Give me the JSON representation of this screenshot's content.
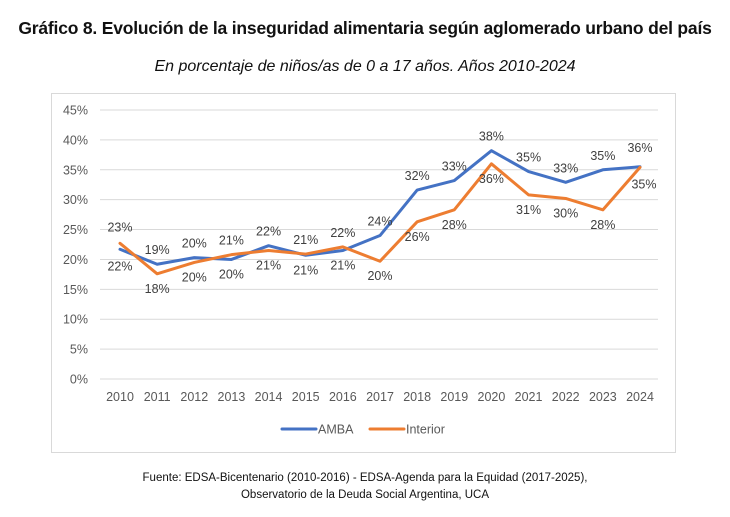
{
  "chart_data": {
    "type": "line",
    "title": "Gráfico 8. Evolución de la inseguridad alimentaria según aglomerado urbano del país",
    "subtitle": "En porcentaje de niños/as de 0 a 17 años. Años 2010-2024",
    "xlabel": "",
    "ylabel": "",
    "categories": [
      "2010",
      "2011",
      "2012",
      "2013",
      "2014",
      "2015",
      "2016",
      "2017",
      "2018",
      "2019",
      "2020",
      "2021",
      "2022",
      "2023",
      "2024"
    ],
    "ylim": [
      0,
      45
    ],
    "yticks": [
      0,
      5,
      10,
      15,
      20,
      25,
      30,
      35,
      40,
      45
    ],
    "ytick_labels": [
      "0%",
      "5%",
      "10%",
      "15%",
      "20%",
      "25%",
      "30%",
      "35%",
      "40%",
      "45%"
    ],
    "grid": true,
    "legend_position": "bottom",
    "series": [
      {
        "name": "AMBA",
        "color": "#4472C4",
        "values": [
          21.7,
          19.2,
          20.3,
          20.0,
          22.3,
          20.7,
          21.5,
          24.0,
          31.6,
          33.2,
          38.2,
          34.7,
          32.9,
          35.0,
          35.5
        ],
        "labels": [
          "22%",
          "19%",
          "20%",
          "20%",
          "22%",
          "21%",
          "21%",
          "24%",
          "32%",
          "33%",
          "38%",
          "35%",
          "33%",
          "35%",
          "36%"
        ]
      },
      {
        "name": "Interior",
        "color": "#ED7D31",
        "values": [
          22.7,
          17.6,
          19.5,
          20.8,
          21.5,
          20.9,
          22.1,
          19.7,
          26.3,
          28.3,
          36.0,
          30.8,
          30.2,
          28.3,
          35.4
        ],
        "labels": [
          "23%",
          "18%",
          "20%",
          "21%",
          "21%",
          "21%",
          "22%",
          "20%",
          "26%",
          "28%",
          "36%",
          "31%",
          "30%",
          "28%",
          "35%"
        ]
      }
    ]
  },
  "footer": {
    "source_line1": "Fuente: EDSA-Bicentenario (2010-2016) - EDSA-Agenda para la Equidad (2017-2025),",
    "source_line2": "Observatorio de la Deuda Social Argentina, UCA"
  }
}
